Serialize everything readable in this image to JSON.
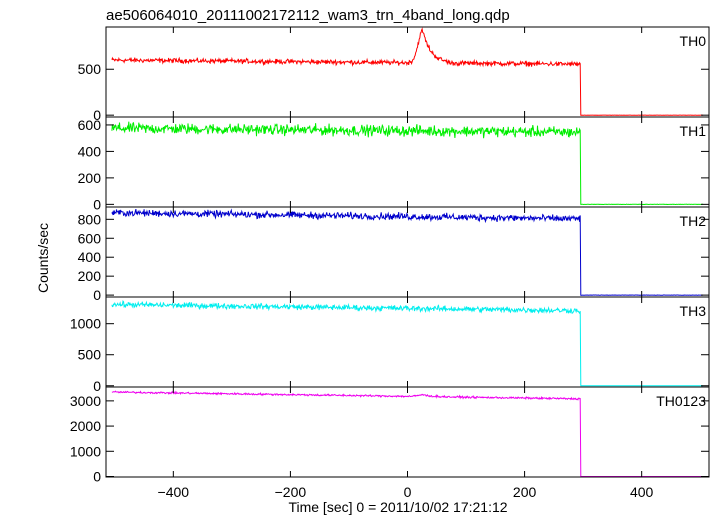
{
  "chart_data": {
    "type": "line",
    "title": "ae506064010_20111002172112_wam3_trn_4band_long.qdp",
    "ylabel": "Counts/sec",
    "xlabel": "Time [sec] 0 = 2011/10/02 17:21:12",
    "xlim": [
      -515,
      515
    ],
    "x_ticks": [
      -400,
      -200,
      0,
      200,
      400
    ],
    "data_x_range": [
      -505,
      505
    ],
    "cutoff_x": 296,
    "panels": [
      {
        "name": "TH0",
        "color": "#ff0000",
        "ylim": [
          -20,
          960
        ],
        "y_ticks": [
          0,
          500
        ],
        "level_before_cutoff": 600,
        "level_end": 555,
        "level_after_cutoff": 0,
        "noise": 28,
        "features": [
          {
            "x": 26,
            "peak": 950,
            "note": "burst"
          }
        ]
      },
      {
        "name": "TH1",
        "color": "#00ee00",
        "ylim": [
          -20,
          660
        ],
        "y_ticks": [
          0,
          200,
          400,
          600
        ],
        "level_before_cutoff": 575,
        "level_end": 545,
        "level_after_cutoff": 0,
        "noise": 45,
        "features": []
      },
      {
        "name": "TH2",
        "color": "#0000cc",
        "ylim": [
          -20,
          930
        ],
        "y_ticks": [
          0,
          200,
          400,
          600,
          800
        ],
        "level_before_cutoff": 870,
        "level_end": 805,
        "level_after_cutoff": 0,
        "noise": 40,
        "features": []
      },
      {
        "name": "TH3",
        "color": "#00eeee",
        "ylim": [
          -20,
          1430
        ],
        "y_ticks": [
          0,
          500,
          1000
        ],
        "level_before_cutoff": 1310,
        "level_end": 1210,
        "level_after_cutoff": 0,
        "noise": 50,
        "features": []
      },
      {
        "name": "TH0123",
        "color": "#ee00ee",
        "ylim": [
          -20,
          3550
        ],
        "y_ticks": [
          0,
          1000,
          2000,
          3000
        ],
        "level_before_cutoff": 3350,
        "level_end": 3080,
        "level_after_cutoff": 0,
        "noise": 40,
        "features": [
          {
            "x": 26,
            "peak": 3420,
            "note": "burst"
          }
        ]
      }
    ]
  }
}
